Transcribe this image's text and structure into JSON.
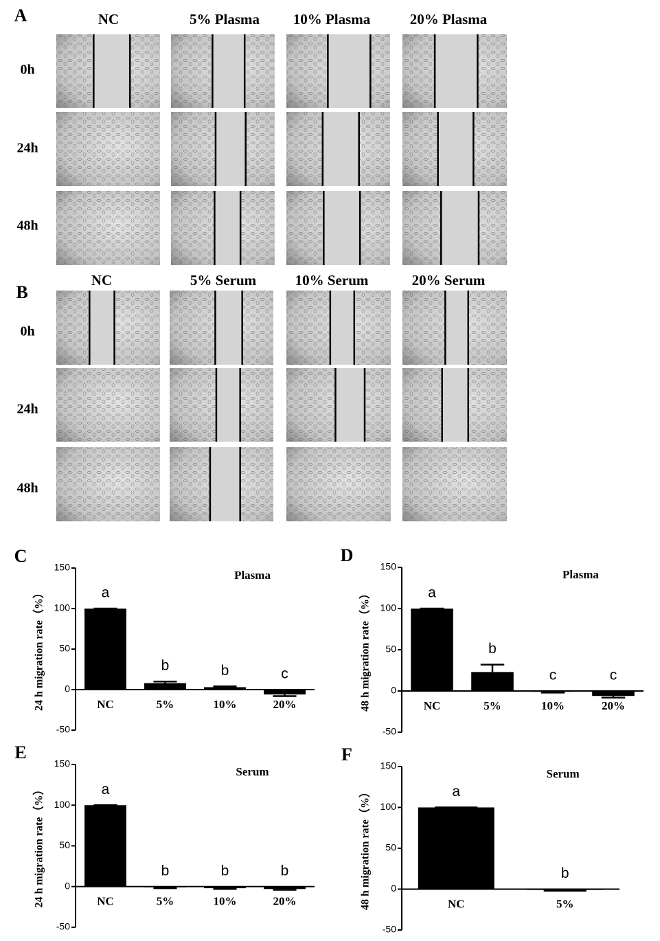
{
  "panels": [
    {
      "letter": "A",
      "columns": [
        "NC",
        "5% Plasma",
        "10% Plasma",
        "20% Plasma"
      ],
      "rows": [
        "0h",
        "24h",
        "48h"
      ]
    },
    {
      "letter": "B",
      "columns": [
        "NC",
        "5% Serum",
        "10% Serum",
        "20% Serum"
      ],
      "rows": [
        "0h",
        "24h",
        "48h"
      ]
    }
  ],
  "chart_data": [
    {
      "type": "bar",
      "panel": "C",
      "title": "Plasma",
      "ylabel": "24 h migration rate（%）",
      "categories": [
        "NC",
        "5%",
        "10%",
        "20%"
      ],
      "values": [
        100,
        8,
        3,
        -6
      ],
      "errors": [
        0,
        2,
        1,
        2
      ],
      "labels": [
        "a",
        "b",
        "b",
        "c"
      ],
      "color": "#000000",
      "ylim": [
        -50,
        150
      ],
      "yticks": [
        -50,
        0,
        50,
        100,
        150
      ]
    },
    {
      "type": "bar",
      "panel": "D",
      "title": "Plasma",
      "ylabel": "48 h migration rate（%）",
      "categories": [
        "NC",
        "5%",
        "10%",
        "20%"
      ],
      "values": [
        100,
        23,
        -1,
        -6
      ],
      "errors": [
        0,
        9,
        1,
        2
      ],
      "labels": [
        "a",
        "b",
        "c",
        "c"
      ],
      "color": "#000000",
      "ylim": [
        -50,
        150
      ],
      "yticks": [
        -50,
        0,
        50,
        100,
        150
      ]
    },
    {
      "type": "bar",
      "panel": "E",
      "title": "Serum",
      "ylabel": "24 h migration rate（%）",
      "categories": [
        "NC",
        "5%",
        "10%",
        "20%"
      ],
      "values": [
        100,
        -1,
        -2,
        -3
      ],
      "errors": [
        0,
        1,
        1,
        1
      ],
      "labels": [
        "a",
        "b",
        "b",
        "b"
      ],
      "color": "#000000",
      "ylim": [
        -50,
        150
      ],
      "yticks": [
        -50,
        0,
        50,
        100,
        150
      ]
    },
    {
      "type": "bar",
      "panel": "F",
      "title": "Serum",
      "ylabel": "48 h migration rate（%）",
      "categories": [
        "NC",
        "5%"
      ],
      "values": [
        100,
        -1
      ],
      "errors": [
        0,
        1
      ],
      "labels": [
        "a",
        "b"
      ],
      "color": "#000000",
      "ylim": [
        -50,
        150
      ],
      "yticks": [
        -50,
        0,
        50,
        100,
        150
      ]
    }
  ]
}
